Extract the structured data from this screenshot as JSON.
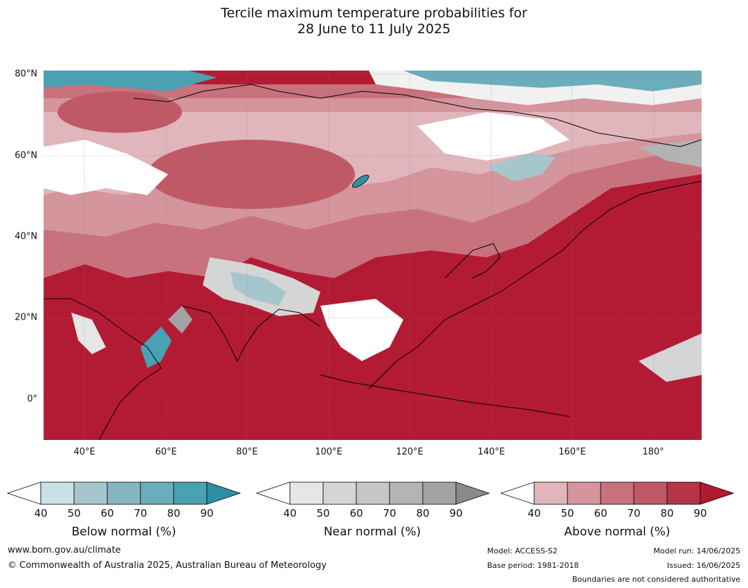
{
  "header": {
    "title_line1": "Tercile maximum temperature probabilities for",
    "title_line2": "28 June to 11 July 2025"
  },
  "map": {
    "lat_labels": [
      "80°N",
      "60°N",
      "40°N",
      "20°N",
      "0°"
    ],
    "lon_labels": [
      "40°E",
      "60°E",
      "80°E",
      "100°E",
      "120°E",
      "140°E",
      "160°E",
      "180°"
    ]
  },
  "legend": {
    "below": {
      "label": "Below normal (%)",
      "ticks": [
        "40",
        "50",
        "60",
        "70",
        "80",
        "90"
      ],
      "colors": [
        "#c9e1e7",
        "#a6c6cd",
        "#87b4c1",
        "#6aadbb",
        "#4aa1b2",
        "#2e8fa4"
      ]
    },
    "near": {
      "label": "Near normal (%)",
      "ticks": [
        "40",
        "50",
        "60",
        "70",
        "80",
        "90"
      ],
      "colors": [
        "#e6e6e6",
        "#d5d5d5",
        "#c6c6c6",
        "#b4b4b4",
        "#a3a3a3",
        "#8a8a8a"
      ]
    },
    "above": {
      "label": "Above normal (%)",
      "ticks": [
        "40",
        "50",
        "60",
        "70",
        "80",
        "90"
      ],
      "colors": [
        "#e0b6bc",
        "#d4959c",
        "#c8727d",
        "#c05966",
        "#b73447",
        "#b11a33"
      ]
    }
  },
  "footer": {
    "website": "www.bom.gov.au/climate",
    "copyright": "© Commonwealth of Australia 2025, Australian Bureau of Meteorology",
    "model": "Model: ACCESS-S2",
    "base_period": "Base period: 1981-2018",
    "model_run": "Model run: 14/06/2025",
    "issued": "Issued: 16/06/2025",
    "disclaimer": "Boundaries are not considered authoritative"
  }
}
